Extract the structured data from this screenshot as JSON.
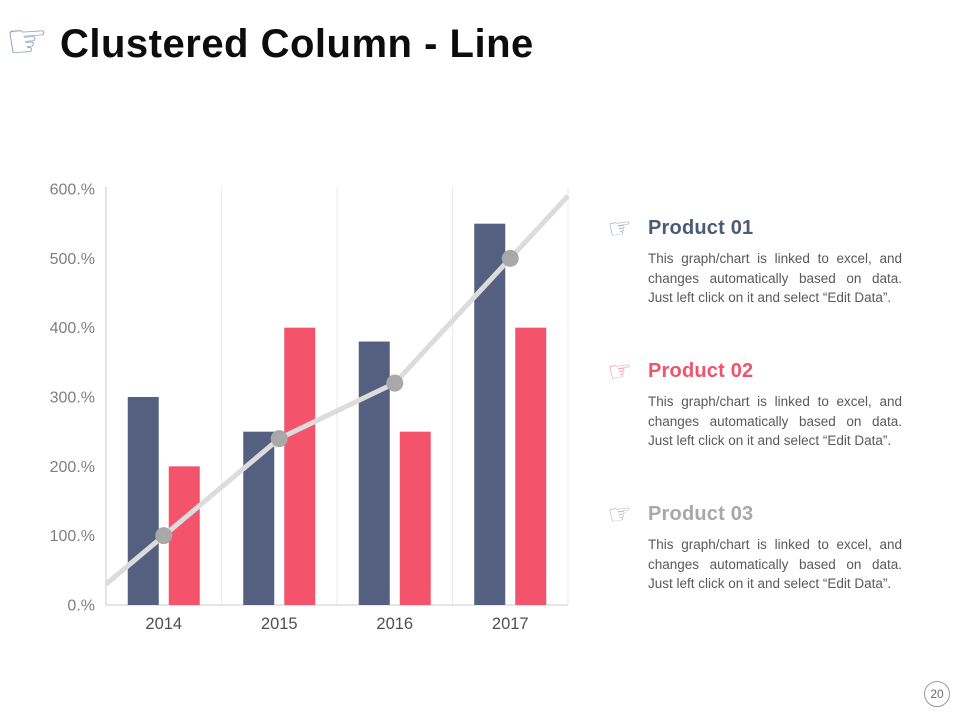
{
  "slide": {
    "title": "Clustered Column - Line",
    "title_icon": "pointing-hand",
    "page_number": "20"
  },
  "products": [
    {
      "name": "Product 01",
      "accent_color": "#4d5a75",
      "description": "This graph/chart is linked to excel, and changes automatically based on data. Just left click on it and select “Edit Data”."
    },
    {
      "name": "Product 02",
      "accent_color": "#f0546c",
      "description": "This graph/chart is linked to excel, and changes automatically based on data. Just left click on it and select “Edit Data”."
    },
    {
      "name": "Product 03",
      "accent_color": "#a8a8a8",
      "description": "This graph/chart is linked to excel, and changes automatically based on data. Just left click on it and select “Edit Data”."
    }
  ],
  "chart_data": {
    "type": "combo-clustered-column-line",
    "categories": [
      "2014",
      "2015",
      "2016",
      "2017"
    ],
    "series": [
      {
        "name": "Product 01",
        "type": "bar",
        "color": "#556080",
        "values": [
          300,
          250,
          380,
          550
        ]
      },
      {
        "name": "Product 02",
        "type": "bar",
        "color": "#f3546c",
        "values": [
          200,
          400,
          250,
          400
        ]
      },
      {
        "name": "Product 03",
        "type": "line",
        "color": "#dcdcdc",
        "marker_color": "#a8a8a8",
        "values": [
          100,
          240,
          320,
          500
        ]
      }
    ],
    "yticks": [
      {
        "value": 600,
        "label": "600.%"
      },
      {
        "value": 500,
        "label": "500.%"
      },
      {
        "value": 400,
        "label": "400.%"
      },
      {
        "value": 300,
        "label": "300.%"
      },
      {
        "value": 200,
        "label": "200.%"
      },
      {
        "value": 100,
        "label": "100.%"
      },
      {
        "value": 0,
        "label": "0.%"
      }
    ],
    "ylim": [
      0,
      600
    ],
    "grid": "vertical-only",
    "legend": "none",
    "axis_color": "#d6d6d6",
    "gridline_color": "#ebebeb",
    "ytick_color": "#7f7f7f",
    "xtick_color": "#4f4f4f"
  }
}
